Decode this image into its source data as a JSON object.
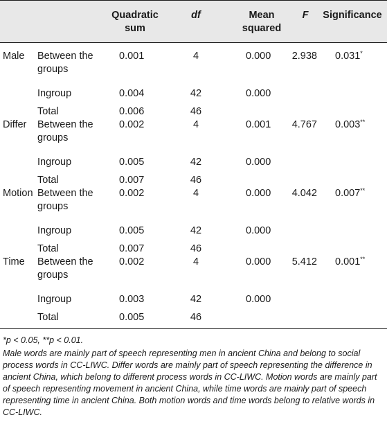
{
  "headers": {
    "quadratic": "Quadratic sum",
    "df": "df",
    "mean": "Mean squared",
    "f": "F",
    "significance": "Significance"
  },
  "groups": [
    {
      "name": "Male",
      "rows": [
        {
          "label": "Between the groups",
          "q": "0.001",
          "df": "4",
          "ms": "0.000",
          "f": "2.938",
          "sig": "0.031",
          "stars": "*"
        },
        {
          "label": "Ingroup",
          "q": "0.004",
          "df": "42",
          "ms": "0.000",
          "f": "",
          "sig": "",
          "stars": ""
        },
        {
          "label": "Total",
          "q": "0.006",
          "df": "46",
          "ms": "",
          "f": "",
          "sig": "",
          "stars": ""
        }
      ]
    },
    {
      "name": "Differ",
      "rows": [
        {
          "label": "Between the groups",
          "q": "0.002",
          "df": "4",
          "ms": "0.001",
          "f": "4.767",
          "sig": "0.003",
          "stars": "**"
        },
        {
          "label": "Ingroup",
          "q": "0.005",
          "df": "42",
          "ms": "0.000",
          "f": "",
          "sig": "",
          "stars": ""
        },
        {
          "label": "Total",
          "q": "0.007",
          "df": "46",
          "ms": "",
          "f": "",
          "sig": "",
          "stars": ""
        }
      ]
    },
    {
      "name": "Motion",
      "rows": [
        {
          "label": "Between the groups",
          "q": "0.002",
          "df": "4",
          "ms": "0.000",
          "f": "4.042",
          "sig": "0.007",
          "stars": "**"
        },
        {
          "label": "Ingroup",
          "q": "0.005",
          "df": "42",
          "ms": "0.000",
          "f": "",
          "sig": "",
          "stars": ""
        },
        {
          "label": "Total",
          "q": "0.007",
          "df": "46",
          "ms": "",
          "f": "",
          "sig": "",
          "stars": ""
        }
      ]
    },
    {
      "name": "Time",
      "rows": [
        {
          "label": "Between the groups",
          "q": "0.002",
          "df": "4",
          "ms": "0.000",
          "f": "5.412",
          "sig": "0.001",
          "stars": "**"
        },
        {
          "label": "Ingroup",
          "q": "0.003",
          "df": "42",
          "ms": "0.000",
          "f": "",
          "sig": "",
          "stars": ""
        },
        {
          "label": "Total",
          "q": "0.005",
          "df": "46",
          "ms": "",
          "f": "",
          "sig": "",
          "stars": ""
        }
      ]
    }
  ],
  "notes": {
    "significance": "*p < 0.05, **p < 0.01.",
    "description": "Male words are mainly part of speech representing men in ancient China and belong to social process words in CC-LIWC. Differ words are mainly part of speech representing the difference in ancient China, which belong to different process words in CC-LIWC. Motion words are mainly part of speech representing movement in ancient China, while time words are mainly part of speech representing time in ancient China. Both motion words and time words belong to relative words in CC-LIWC."
  }
}
